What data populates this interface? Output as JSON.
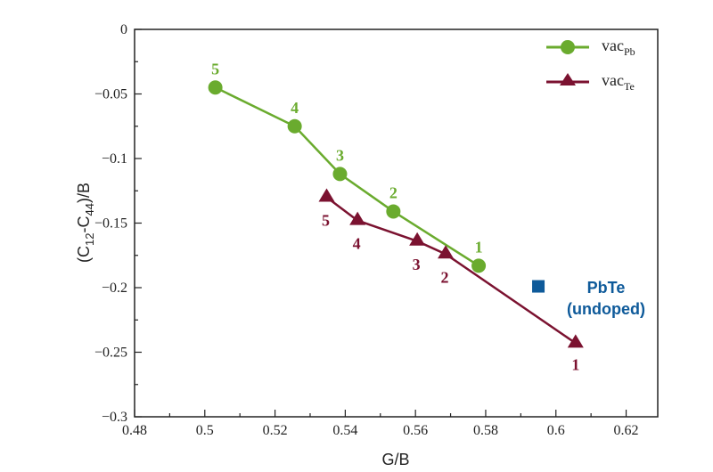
{
  "chart_data": {
    "type": "scatter",
    "xlabel": "G/B",
    "ylabel": {
      "base": "(C",
      "sub1": "12",
      "mid": "-C",
      "sub2": "44",
      "end": ")/B"
    },
    "xlim": [
      0.48,
      0.629
    ],
    "ylim": [
      -0.3,
      0
    ],
    "xticks": [
      0.48,
      0.5,
      0.52,
      0.54,
      0.56,
      0.58,
      0.6,
      0.62
    ],
    "xtick_labels": [
      "0.48",
      "0.5",
      "0.52",
      "0.54",
      "0.56",
      "0.58",
      "0.6",
      "0.62"
    ],
    "yticks": [
      0,
      -0.05,
      -0.1,
      -0.15,
      -0.2,
      -0.25,
      -0.3
    ],
    "ytick_labels": [
      "0",
      "-0.05",
      "-0.1",
      "-0.15",
      "-0.2",
      "-0.25",
      "-0.3"
    ],
    "grid": false,
    "legend_position": "top-right",
    "series": [
      {
        "name": "vacPb",
        "legend_base": "vac",
        "legend_sub": "Pb",
        "color": "#6aab2e",
        "marker": "circle",
        "x": [
          0.578,
          0.5537,
          0.5385,
          0.5256,
          0.503
        ],
        "y": [
          -0.183,
          -0.141,
          -0.112,
          -0.075,
          -0.045
        ],
        "point_labels": [
          "1",
          "2",
          "3",
          "4",
          "5"
        ]
      },
      {
        "name": "vacTe",
        "legend_base": "vac",
        "legend_sub": "Te",
        "color": "#7b1230",
        "marker": "triangle",
        "x": [
          0.6056,
          0.5686,
          0.5605,
          0.5435,
          0.5347
        ],
        "y": [
          -0.243,
          -0.174,
          -0.164,
          -0.148,
          -0.13
        ],
        "point_labels": [
          "1",
          "2",
          "3",
          "4",
          "5"
        ]
      }
    ],
    "reference_point": {
      "x": 0.595,
      "y": -0.199,
      "color": "#0e5a9a",
      "marker": "square",
      "label_line1": "PbTe",
      "label_line2": "(undoped)"
    }
  }
}
